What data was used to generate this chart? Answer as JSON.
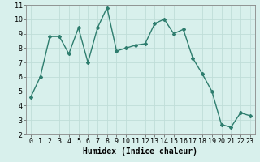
{
  "x": [
    0,
    1,
    2,
    3,
    4,
    5,
    6,
    7,
    8,
    9,
    10,
    11,
    12,
    13,
    14,
    15,
    16,
    17,
    18,
    19,
    20,
    21,
    22,
    23
  ],
  "y": [
    4.6,
    6.0,
    8.8,
    8.8,
    7.6,
    9.4,
    7.0,
    9.4,
    10.8,
    7.8,
    8.0,
    8.2,
    8.3,
    9.7,
    10.0,
    9.0,
    9.3,
    7.3,
    6.2,
    5.0,
    2.7,
    2.5,
    3.5,
    3.3
  ],
  "line_color": "#2e7d6e",
  "marker": "D",
  "marker_size": 2,
  "line_width": 1.0,
  "bg_color": "#d8f0ec",
  "grid_color": "#c0ddd8",
  "xlabel": "Humidex (Indice chaleur)",
  "xlabel_fontsize": 7,
  "tick_fontsize": 6,
  "ylim": [
    2,
    11
  ],
  "xlim": [
    -0.5,
    23.5
  ],
  "yticks": [
    2,
    3,
    4,
    5,
    6,
    7,
    8,
    9,
    10,
    11
  ],
  "xticks": [
    0,
    1,
    2,
    3,
    4,
    5,
    6,
    7,
    8,
    9,
    10,
    11,
    12,
    13,
    14,
    15,
    16,
    17,
    18,
    19,
    20,
    21,
    22,
    23
  ]
}
